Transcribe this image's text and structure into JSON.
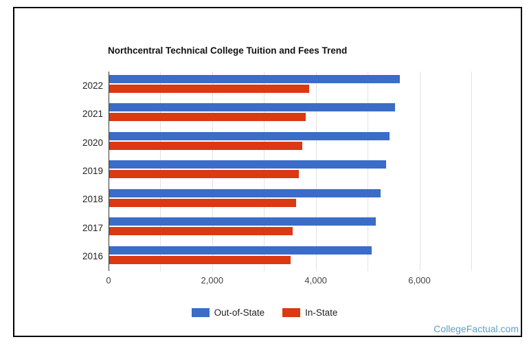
{
  "chart_data": {
    "type": "bar",
    "orientation": "horizontal",
    "title": "Northcentral Technical College Tuition and Fees Trend",
    "categories": [
      "2022",
      "2021",
      "2020",
      "2019",
      "2018",
      "2017",
      "2016"
    ],
    "series": [
      {
        "name": "Out-of-State",
        "color": "#3b6cc8",
        "values": [
          5610,
          5520,
          5410,
          5340,
          5240,
          5150,
          5070
        ]
      },
      {
        "name": "In-State",
        "color": "#db3912",
        "values": [
          3860,
          3790,
          3720,
          3660,
          3600,
          3540,
          3500
        ]
      }
    ],
    "x_axis": {
      "min": 0,
      "max": 7200,
      "gridline_interval": 1000,
      "ticks": [
        {
          "value": 0,
          "label": "0"
        },
        {
          "value": 2000,
          "label": "2,000"
        },
        {
          "value": 4000,
          "label": "4,000"
        },
        {
          "value": 6000,
          "label": "6,000"
        }
      ]
    },
    "grid": true,
    "legend_position": "bottom"
  },
  "colors": {
    "out_of_state": "#3b6cc8",
    "in_state": "#db3912",
    "gridline": "#e2e2e2",
    "axis_line": "#333333",
    "watermark": "#5c9fc1"
  },
  "footer": {
    "watermark": "CollegeFactual.com"
  }
}
